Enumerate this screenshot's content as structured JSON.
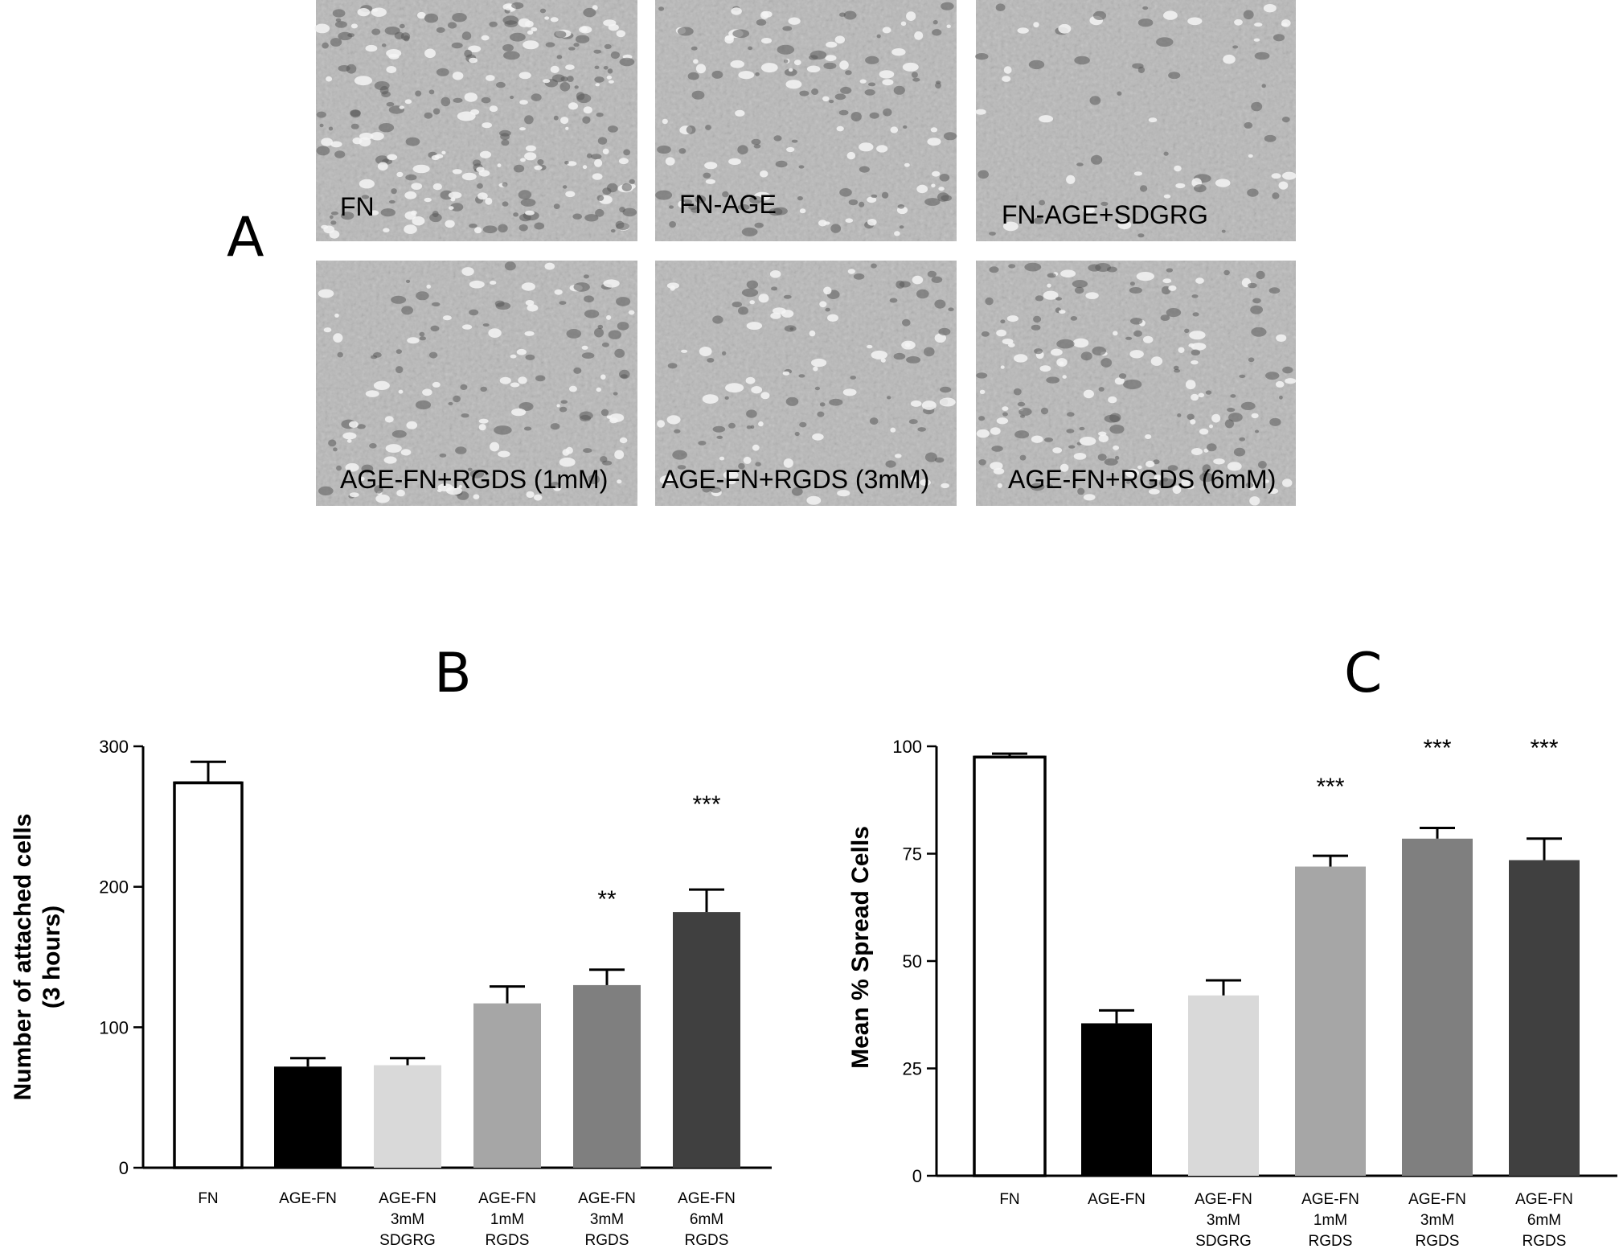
{
  "panel_a": {
    "letter": "A",
    "images": [
      {
        "caption": "FN",
        "density": "high"
      },
      {
        "caption": "FN-AGE",
        "density": "medium"
      },
      {
        "caption": "FN-AGE+SDGRG",
        "density": "low"
      },
      {
        "caption": "AGE-FN+RGDS (1mM)",
        "density": "medium"
      },
      {
        "caption": "AGE-FN+RGDS (3mM)",
        "density": "medium-low"
      },
      {
        "caption": "AGE-FN+RGDS (6mM)",
        "density": "medium-high"
      }
    ],
    "background_color": "#b9b9b9"
  },
  "chart_data": [
    {
      "panel": "B",
      "type": "bar",
      "ylabel": [
        "Number of attached cells",
        "(3 hours)"
      ],
      "ylim": [
        0,
        300
      ],
      "yticks": [
        0,
        100,
        200,
        300
      ],
      "categories": [
        [
          "FN"
        ],
        [
          "AGE-FN"
        ],
        [
          "AGE-FN",
          "3mM",
          "SDGRG"
        ],
        [
          "AGE-FN",
          "1mM",
          "RGDS"
        ],
        [
          "AGE-FN",
          "3mM",
          "RGDS"
        ],
        [
          "AGE-FN",
          "6mM",
          "RGDS"
        ]
      ],
      "values": [
        274,
        72,
        73,
        117,
        130,
        182
      ],
      "errors": [
        15,
        6,
        5,
        12,
        11,
        16
      ],
      "significance": [
        "",
        "",
        "",
        "",
        "**",
        "***"
      ],
      "colors": [
        "#ffffff",
        "#000000",
        "#d9d9d9",
        "#a6a6a6",
        "#7f7f7f",
        "#404040"
      ],
      "grid": false
    },
    {
      "panel": "C",
      "type": "bar",
      "ylabel": [
        "Mean % Spread Cells"
      ],
      "ylim": [
        0,
        100
      ],
      "yticks": [
        0,
        25,
        50,
        75,
        100
      ],
      "categories": [
        [
          "FN"
        ],
        [
          "AGE-FN"
        ],
        [
          "AGE-FN",
          "3mM",
          "SDGRG"
        ],
        [
          "AGE-FN",
          "1mM",
          "RGDS"
        ],
        [
          "AGE-FN",
          "3mM",
          "RGDS"
        ],
        [
          "AGE-FN",
          "6mM",
          "RGDS"
        ]
      ],
      "values": [
        97.5,
        35.5,
        42,
        72,
        78.5,
        73.5
      ],
      "errors": [
        0.8,
        3,
        3.5,
        2.5,
        2.5,
        5
      ],
      "significance": [
        "",
        "",
        "",
        "***",
        "***",
        "***"
      ],
      "colors": [
        "#ffffff",
        "#000000",
        "#d9d9d9",
        "#a6a6a6",
        "#7f7f7f",
        "#404040"
      ],
      "grid": false
    }
  ]
}
